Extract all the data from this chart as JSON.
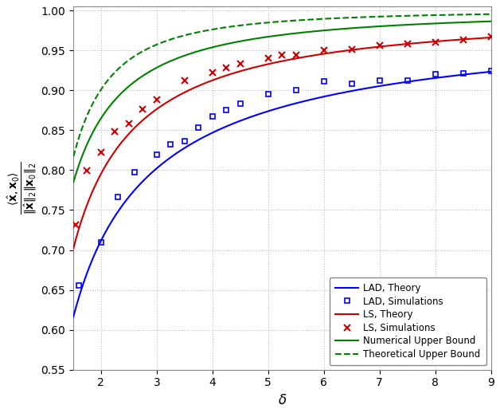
{
  "xlim": [
    1.5,
    9.0
  ],
  "ylim": [
    0.55,
    1.005
  ],
  "xticks": [
    2,
    3,
    4,
    5,
    6,
    7,
    8,
    9
  ],
  "yticks": [
    0.55,
    0.6,
    0.65,
    0.7,
    0.75,
    0.8,
    0.85,
    0.9,
    0.95,
    1.0
  ],
  "xlabel": "$\\delta$",
  "ylabel": "$\\frac{\\langle \\hat{\\mathbf{x}}, \\mathbf{x}_0 \\rangle}{\\|\\hat{\\mathbf{x}}\\|_2 \\|\\mathbf{x}_0\\|_2}$",
  "lad_sim_x": [
    1.6,
    2.0,
    2.3,
    2.6,
    3.0,
    3.25,
    3.5,
    3.75,
    4.0,
    4.25,
    4.5,
    5.0,
    5.5,
    6.0,
    6.5,
    7.0,
    7.5,
    8.0,
    8.5,
    9.0
  ],
  "lad_sim_y": [
    0.656,
    0.71,
    0.766,
    0.797,
    0.819,
    0.832,
    0.836,
    0.853,
    0.867,
    0.875,
    0.883,
    0.895,
    0.9,
    0.911,
    0.908,
    0.912,
    0.912,
    0.92,
    0.921,
    0.924
  ],
  "ls_sim_x": [
    1.55,
    1.75,
    2.0,
    2.25,
    2.5,
    2.75,
    3.0,
    3.5,
    4.0,
    4.25,
    4.5,
    5.0,
    5.25,
    5.5,
    6.0,
    6.5,
    7.0,
    7.5,
    8.0,
    8.5,
    9.0
  ],
  "ls_sim_y": [
    0.731,
    0.799,
    0.822,
    0.848,
    0.858,
    0.876,
    0.888,
    0.912,
    0.922,
    0.928,
    0.933,
    0.94,
    0.944,
    0.944,
    0.95,
    0.951,
    0.956,
    0.958,
    0.96,
    0.963,
    0.967
  ],
  "blue": "#0000FF",
  "red": "#CC0000",
  "green": "#008000",
  "lw": 1.5,
  "background": "#FFFFFF",
  "grid_color": "#BBBBBB",
  "legend_loc": "lower right"
}
